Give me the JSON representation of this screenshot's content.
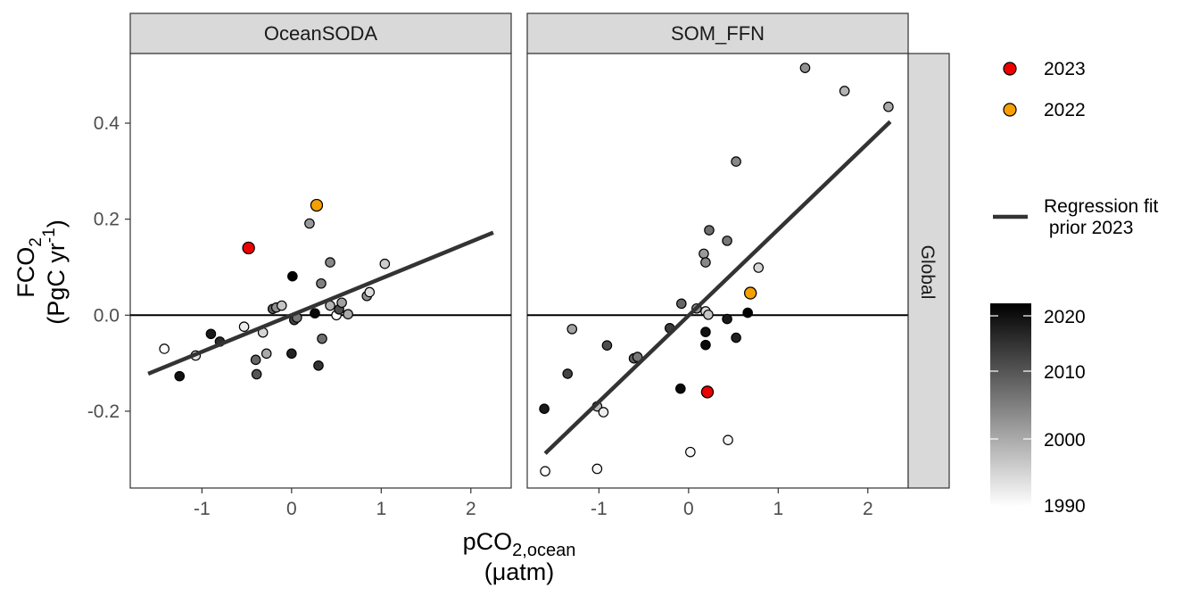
{
  "figure": {
    "y_axis_label": {
      "line1": "FCO",
      "line1_sub": "2",
      "line2_a": "(PgC yr",
      "line2_sup": "-1",
      "line2_b": ")"
    },
    "x_axis_label": {
      "line1": "pCO",
      "line1_sub": "2,ocean",
      "line2": "(μatm)"
    },
    "row_strip": "Global"
  },
  "legend": {
    "points": [
      {
        "label": "2023",
        "color": "#ee0000"
      },
      {
        "label": "2022",
        "color": "#f5a000"
      }
    ],
    "line": {
      "label_line1": "Regression fit",
      "label_line2": " prior 2023",
      "color": "#333333"
    },
    "colorbar": {
      "ticks": [
        2020,
        2010,
        2000,
        1990
      ],
      "range": [
        1990,
        2020
      ],
      "low_color": "#ffffff",
      "high_color": "#000000"
    }
  },
  "chart_data": [
    {
      "type": "scatter",
      "panel": "OceanSODA",
      "xlim": [
        -1.8,
        2.45
      ],
      "ylim": [
        -0.36,
        0.545
      ],
      "x_ticks": [
        -1,
        0,
        1,
        2
      ],
      "y_ticks": [
        -0.2,
        0.0,
        0.2,
        0.4
      ],
      "y_tick_labels": [
        "-0.2",
        "0.0",
        "0.2",
        "0.4"
      ],
      "grid": false,
      "hline": 0,
      "fit_line": {
        "x": [
          -1.6,
          2.25
        ],
        "y": [
          -0.122,
          0.172
        ]
      },
      "points": [
        {
          "x": -1.42,
          "y": -0.07,
          "year": 1990
        },
        {
          "x": -1.25,
          "y": -0.127,
          "year": 2018
        },
        {
          "x": -1.07,
          "y": -0.084,
          "year": 1993
        },
        {
          "x": -0.9,
          "y": -0.039,
          "year": 2017
        },
        {
          "x": -0.8,
          "y": -0.055,
          "year": 2015
        },
        {
          "x": -0.53,
          "y": -0.024,
          "year": 1992
        },
        {
          "x": -0.4,
          "y": -0.093,
          "year": 2008
        },
        {
          "x": -0.39,
          "y": -0.123,
          "year": 2010
        },
        {
          "x": -0.32,
          "y": -0.036,
          "year": 1995
        },
        {
          "x": -0.28,
          "y": -0.08,
          "year": 2000
        },
        {
          "x": -0.21,
          "y": 0.013,
          "year": 2009
        },
        {
          "x": -0.17,
          "y": 0.016,
          "year": 2003
        },
        {
          "x": -0.11,
          "y": 0.02,
          "year": 1997
        },
        {
          "x": 0.0,
          "y": -0.08,
          "year": 2016
        },
        {
          "x": 0.01,
          "y": 0.081,
          "year": 2021
        },
        {
          "x": 0.03,
          "y": -0.01,
          "year": 2012
        },
        {
          "x": 0.06,
          "y": -0.005,
          "year": 2006
        },
        {
          "x": 0.2,
          "y": 0.191,
          "year": 2002
        },
        {
          "x": 0.26,
          "y": 0.004,
          "year": 2019
        },
        {
          "x": 0.3,
          "y": -0.105,
          "year": 2014
        },
        {
          "x": 0.33,
          "y": 0.066,
          "year": 2005
        },
        {
          "x": 0.34,
          "y": -0.049,
          "year": 2007
        },
        {
          "x": 0.43,
          "y": 0.11,
          "year": 2004
        },
        {
          "x": 0.43,
          "y": 0.02,
          "year": 1999
        },
        {
          "x": 0.5,
          "y": 0.0,
          "year": 1990
        },
        {
          "x": 0.53,
          "y": 0.012,
          "year": 2011
        },
        {
          "x": 0.56,
          "y": 0.026,
          "year": 2001
        },
        {
          "x": 0.63,
          "y": 0.002,
          "year": 2000
        },
        {
          "x": 0.84,
          "y": 0.04,
          "year": 2003
        },
        {
          "x": 0.87,
          "y": 0.048,
          "year": 1994
        },
        {
          "x": 1.04,
          "y": 0.107,
          "year": 1996
        },
        {
          "x": -0.48,
          "y": 0.14,
          "highlight": "2023"
        },
        {
          "x": 0.28,
          "y": 0.229,
          "highlight": "2022"
        }
      ]
    },
    {
      "type": "scatter",
      "panel": "SOM_FFN",
      "xlim": [
        -1.8,
        2.45
      ],
      "ylim": [
        -0.36,
        0.545
      ],
      "x_ticks": [
        -1,
        0,
        1,
        2
      ],
      "y_ticks": [
        -0.2,
        0.0,
        0.2,
        0.4
      ],
      "grid": false,
      "hline": 0,
      "fit_line": {
        "x": [
          -1.6,
          2.25
        ],
        "y": [
          -0.288,
          0.403
        ]
      },
      "points": [
        {
          "x": -1.6,
          "y": -0.325,
          "year": 1990
        },
        {
          "x": -1.61,
          "y": -0.195,
          "year": 2017
        },
        {
          "x": -1.35,
          "y": -0.122,
          "year": 2012
        },
        {
          "x": -1.3,
          "y": -0.029,
          "year": 2001
        },
        {
          "x": -1.02,
          "y": -0.32,
          "year": 1991
        },
        {
          "x": -1.02,
          "y": -0.19,
          "year": 1998
        },
        {
          "x": -0.95,
          "y": -0.202,
          "year": 1992
        },
        {
          "x": -0.91,
          "y": -0.063,
          "year": 2011
        },
        {
          "x": -0.61,
          "y": -0.09,
          "year": 2009
        },
        {
          "x": -0.57,
          "y": -0.087,
          "year": 2006
        },
        {
          "x": -0.21,
          "y": -0.027,
          "year": 2013
        },
        {
          "x": -0.08,
          "y": 0.024,
          "year": 2008
        },
        {
          "x": -0.09,
          "y": -0.153,
          "year": 2019
        },
        {
          "x": 0.02,
          "y": -0.285,
          "year": 1991
        },
        {
          "x": 0.09,
          "y": 0.014,
          "year": 2003
        },
        {
          "x": 0.17,
          "y": 0.128,
          "year": 2002
        },
        {
          "x": 0.19,
          "y": 0.11,
          "year": 2004
        },
        {
          "x": 0.19,
          "y": 0.008,
          "year": 1994
        },
        {
          "x": 0.19,
          "y": -0.035,
          "year": 2018
        },
        {
          "x": 0.19,
          "y": -0.062,
          "year": 2019
        },
        {
          "x": 0.22,
          "y": 0.001,
          "year": 1997
        },
        {
          "x": 0.23,
          "y": 0.177,
          "year": 2007
        },
        {
          "x": 0.43,
          "y": 0.155,
          "year": 2006
        },
        {
          "x": 0.43,
          "y": -0.008,
          "year": 2017
        },
        {
          "x": 0.44,
          "y": -0.26,
          "year": 1991
        },
        {
          "x": 0.53,
          "y": 0.32,
          "year": 2004
        },
        {
          "x": 0.53,
          "y": -0.047,
          "year": 2016
        },
        {
          "x": 0.66,
          "y": 0.005,
          "year": 2020
        },
        {
          "x": 0.78,
          "y": 0.099,
          "year": 1995
        },
        {
          "x": 1.3,
          "y": 0.515,
          "year": 2003
        },
        {
          "x": 1.74,
          "y": 0.467,
          "year": 1999
        },
        {
          "x": 2.23,
          "y": 0.434,
          "year": 2000
        },
        {
          "x": 0.21,
          "y": -0.16,
          "highlight": "2023"
        },
        {
          "x": 0.69,
          "y": 0.046,
          "highlight": "2022"
        }
      ]
    }
  ]
}
